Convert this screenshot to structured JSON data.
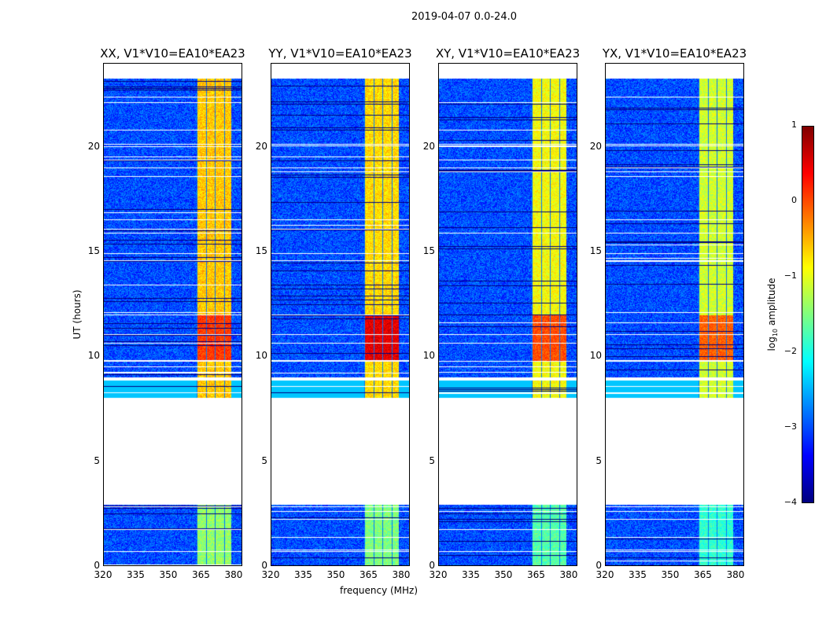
{
  "title": "2019-04-07 0.0-24.0",
  "chart_data": {
    "type": "heatmap",
    "xlabel": "frequency (MHz)",
    "ylabel": "UT (hours)",
    "xlim": [
      320,
      384
    ],
    "ylim": [
      0,
      24
    ],
    "xticks": [
      "320",
      "335",
      "350",
      "365",
      "380"
    ],
    "xtick_values": [
      320,
      335,
      350,
      365,
      380
    ],
    "yticks": [
      "0",
      "5",
      "10",
      "15",
      "20"
    ],
    "ytick_values": [
      0,
      5,
      10,
      15,
      20
    ],
    "data_time_ranges": [
      [
        0,
        2.9
      ],
      [
        8.0,
        8.85
      ],
      [
        9.0,
        23.3
      ]
    ],
    "bright_band_mhz": [
      363,
      379
    ],
    "panels": [
      {
        "title": "XX, V1*V10=EA10*EA23",
        "background_log_amp": -3.0,
        "band_log_amp": -0.6,
        "peak_log_amp": 0.1
      },
      {
        "title": "YY, V1*V10=EA10*EA23",
        "background_log_amp": -3.0,
        "band_log_amp": -0.7,
        "peak_log_amp": 0.5
      },
      {
        "title": "XY, V1*V10=EA10*EA23",
        "background_log_amp": -3.0,
        "band_log_amp": -0.9,
        "peak_log_amp": 0.0
      },
      {
        "title": "YX, V1*V10=EA10*EA23",
        "background_log_amp": -3.0,
        "band_log_amp": -1.1,
        "peak_log_amp": -0.1
      }
    ],
    "colorbar": {
      "label": "log10 amplitude",
      "label_main": "log",
      "label_sub": "10",
      "label_rest": " amplitude",
      "range": [
        -4,
        1
      ],
      "ticks": [
        "−4",
        "−3",
        "−2",
        "−1",
        "0",
        "1"
      ],
      "tick_values": [
        -4,
        -3,
        -2,
        -1,
        0,
        1
      ],
      "colormap": "jet"
    }
  }
}
